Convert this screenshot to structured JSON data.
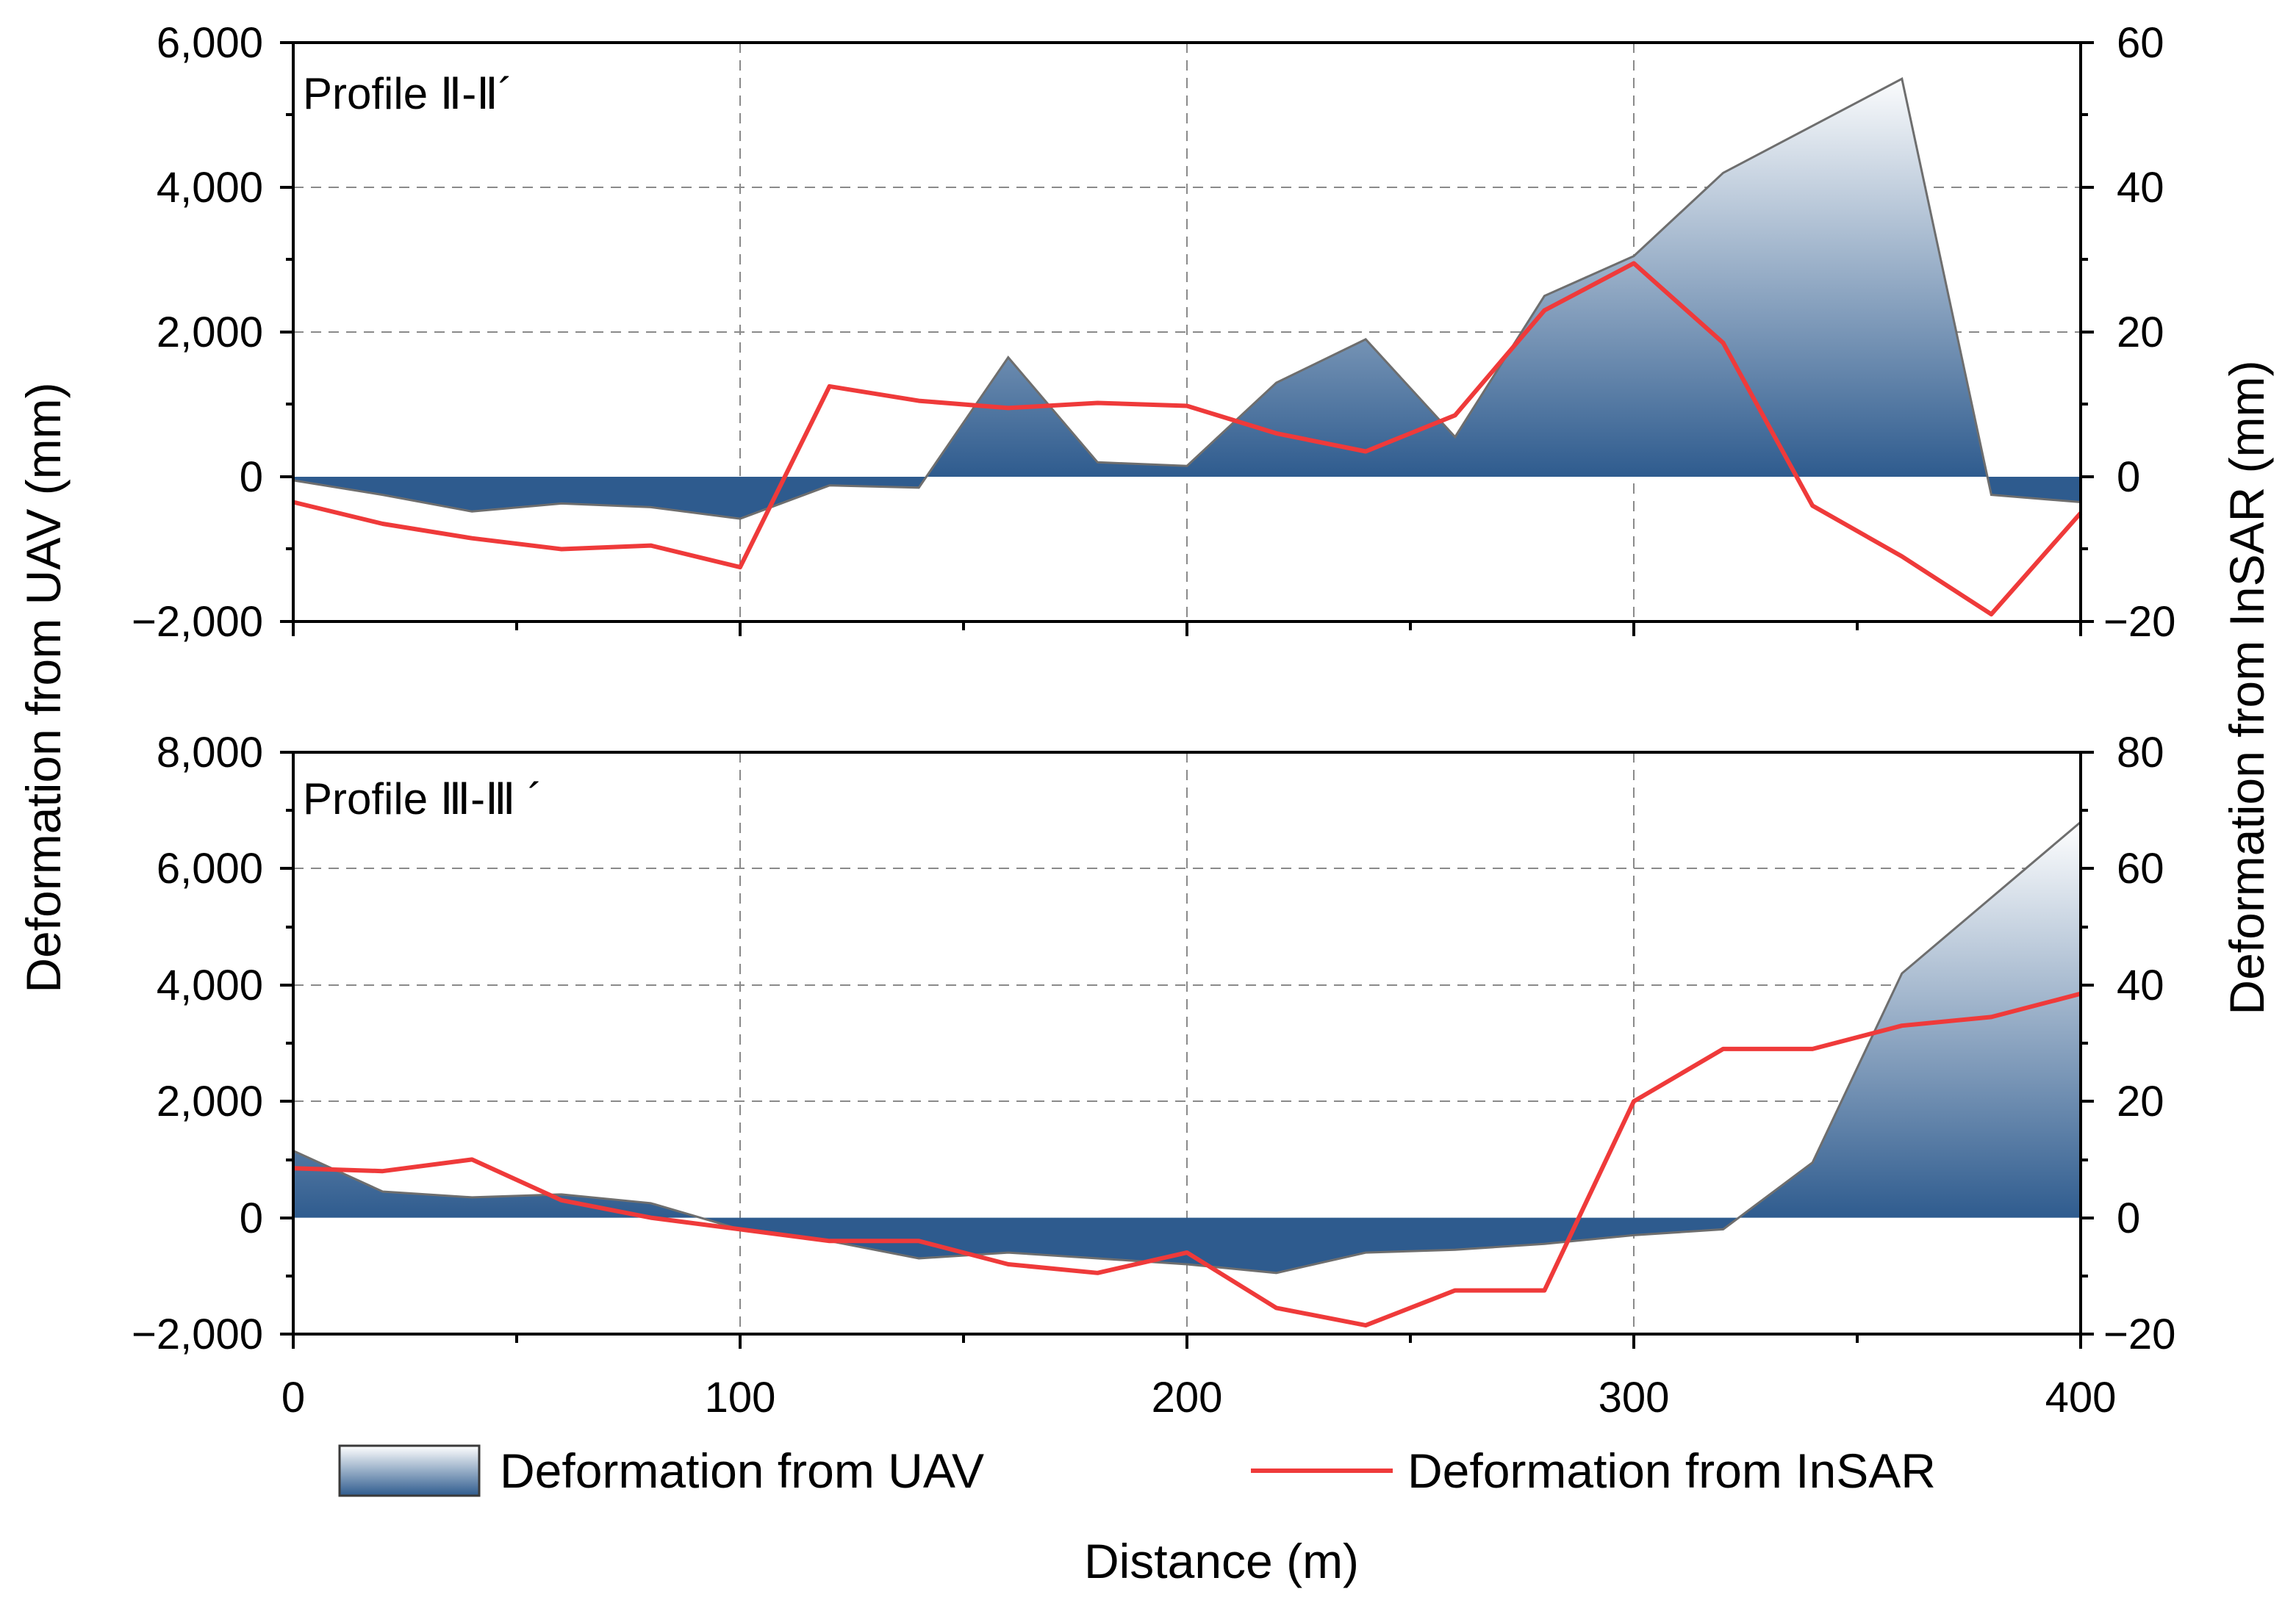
{
  "colors": {
    "uav_dark": "#2e5b8e",
    "uav_light": "#ffffff",
    "uav_edge": "#6e6e6e",
    "insar": "#ef3a3a"
  },
  "chart_data": [
    {
      "type": "area",
      "panel_label": "Profile Ⅱ-Ⅱ´",
      "x": [
        0,
        20,
        40,
        60,
        80,
        100,
        120,
        140,
        160,
        180,
        200,
        220,
        240,
        260,
        280,
        300,
        320,
        340,
        360,
        380,
        400
      ],
      "series": [
        {
          "name": "Deformation from UAV",
          "axis": "left",
          "style": "gradient-area",
          "values": [
            -50,
            -250,
            -480,
            -370,
            -420,
            -580,
            -120,
            -150,
            1650,
            200,
            150,
            1300,
            1900,
            550,
            2500,
            3050,
            4200,
            4850,
            5500,
            -250,
            -350
          ]
        },
        {
          "name": "Deformation from InSAR",
          "axis": "right",
          "style": "line",
          "values": [
            -3.5,
            -6.5,
            -8.5,
            -10,
            -9.5,
            -12.5,
            12.5,
            10.5,
            9.5,
            10.2,
            9.8,
            6,
            3.5,
            8.5,
            23,
            29.5,
            18.5,
            -4,
            -11,
            -19,
            -5
          ]
        }
      ],
      "ylim_left": [
        -2000,
        6000
      ],
      "yticks_left": [
        "−2,000",
        "0",
        "2,000",
        "4,000",
        "6,000"
      ],
      "ylim_right": [
        -20,
        60
      ],
      "yticks_right": [
        "−20",
        "0",
        "20",
        "40",
        "60"
      ]
    },
    {
      "type": "area",
      "panel_label": "Profile Ⅲ-Ⅲ ´",
      "x": [
        0,
        20,
        40,
        60,
        80,
        100,
        120,
        140,
        160,
        180,
        200,
        220,
        240,
        260,
        280,
        300,
        320,
        340,
        360,
        380,
        400
      ],
      "series": [
        {
          "name": "Deformation from UAV",
          "axis": "left",
          "style": "gradient-area",
          "values": [
            1150,
            450,
            350,
            400,
            250,
            -200,
            -400,
            -700,
            -600,
            -700,
            -800,
            -950,
            -600,
            -550,
            -450,
            -300,
            -200,
            950,
            4200,
            5500,
            6800
          ]
        },
        {
          "name": "Deformation from InSAR",
          "axis": "right",
          "style": "line",
          "values": [
            8.5,
            8,
            10,
            3,
            0,
            -2,
            -4,
            -4,
            -8,
            -9.5,
            -6,
            -15.5,
            -18.5,
            -12.5,
            -12.5,
            20,
            29,
            29,
            33,
            34.5,
            38.5
          ]
        }
      ],
      "ylim_left": [
        -2000,
        8000
      ],
      "yticks_left": [
        "−2,000",
        "0",
        "2,000",
        "4,000",
        "6,000",
        "8,000"
      ],
      "ylim_right": [
        -20,
        80
      ],
      "yticks_right": [
        "−20",
        "0",
        "20",
        "40",
        "60",
        "80"
      ]
    }
  ],
  "axes": {
    "xlim": [
      0,
      400
    ],
    "xticks": [
      "0",
      "100",
      "200",
      "300",
      "400"
    ],
    "xlabel": "Distance (m)",
    "ylabel_left": "Deformation from UAV (mm)",
    "ylabel_right": "Deformation from InSAR (mm)"
  },
  "legend": {
    "uav_label": "Deformation from UAV",
    "insar_label": "Deformation from InSAR"
  }
}
